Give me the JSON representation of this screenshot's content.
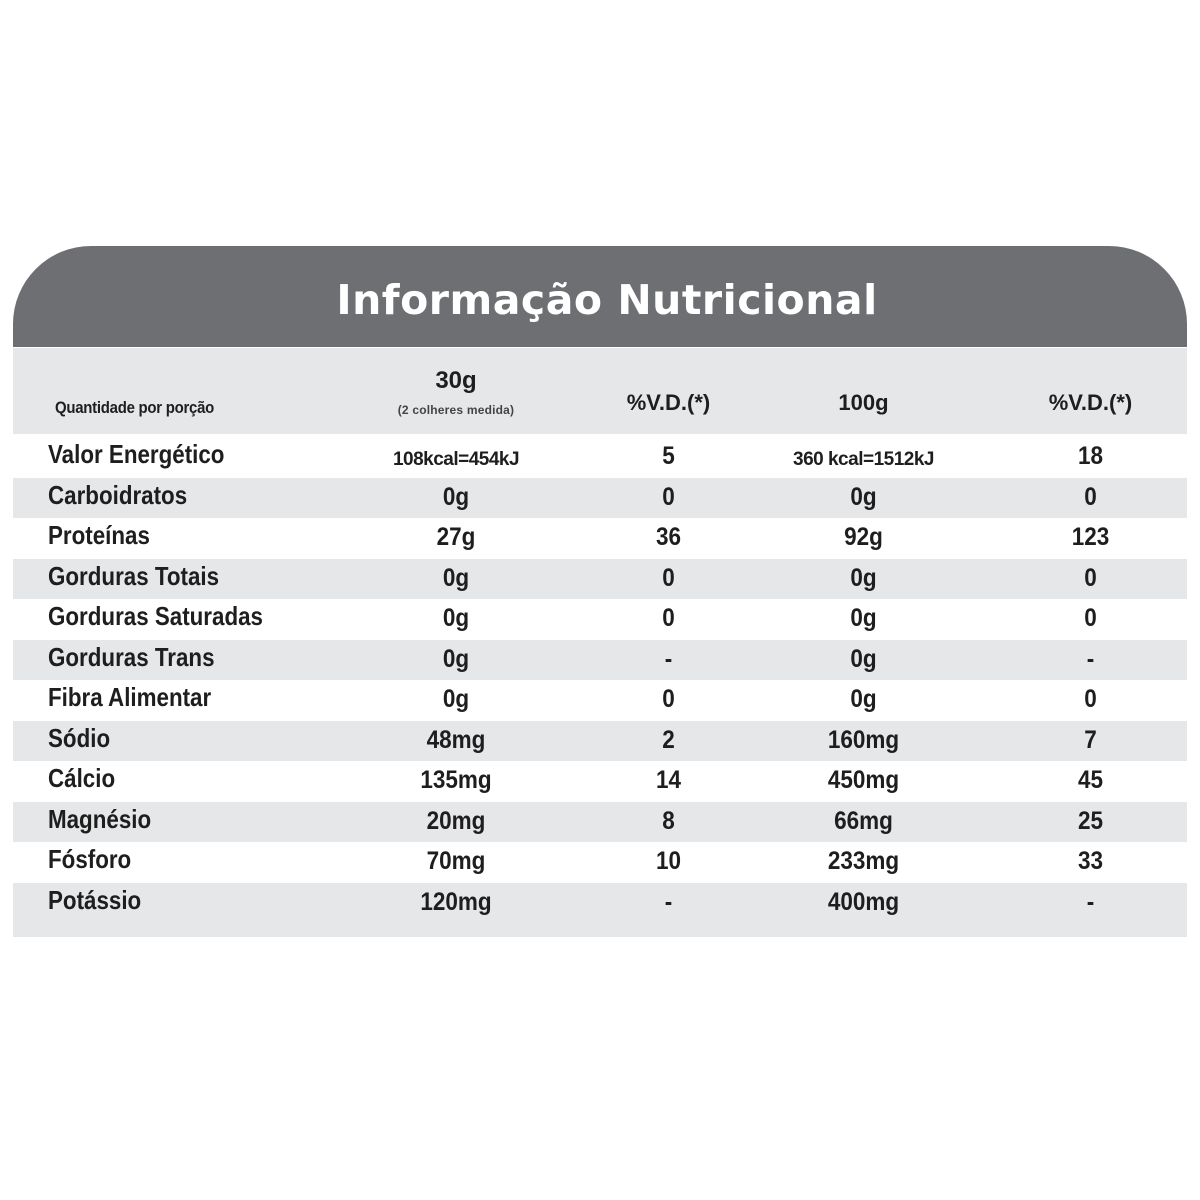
{
  "title": "Informação Nutricional",
  "header": {
    "label": "Quantidade por porção",
    "serving_amount": "30g",
    "serving_note": "(2 colheres medida)",
    "dv_col1": "%V.D.(*)",
    "per_100": "100g",
    "dv_col2": "%V.D.(*)"
  },
  "colors": {
    "title_band": "#6e6f73",
    "shade_row": "#e6e7e9",
    "title_text": "#ffffff",
    "body_text": "#1e1e1e"
  },
  "rows": [
    {
      "name": "Valor Energético",
      "serving": "108kcal=454kJ",
      "dv_serving": "5",
      "per100": "360 kcal=1512kJ",
      "dv_per100": "18"
    },
    {
      "name": "Carboidratos",
      "serving": "0g",
      "dv_serving": "0",
      "per100": "0g",
      "dv_per100": "0"
    },
    {
      "name": "Proteínas",
      "serving": "27g",
      "dv_serving": "36",
      "per100": "92g",
      "dv_per100": "123"
    },
    {
      "name": "Gorduras Totais",
      "serving": "0g",
      "dv_serving": "0",
      "per100": "0g",
      "dv_per100": "0"
    },
    {
      "name": "Gorduras Saturadas",
      "serving": "0g",
      "dv_serving": "0",
      "per100": "0g",
      "dv_per100": "0"
    },
    {
      "name": "Gorduras Trans",
      "serving": "0g",
      "dv_serving": "-",
      "per100": "0g",
      "dv_per100": "-"
    },
    {
      "name": "Fibra Alimentar",
      "serving": "0g",
      "dv_serving": "0",
      "per100": "0g",
      "dv_per100": "0"
    },
    {
      "name": "Sódio",
      "serving": "48mg",
      "dv_serving": "2",
      "per100": "160mg",
      "dv_per100": "7"
    },
    {
      "name": "Cálcio",
      "serving": "135mg",
      "dv_serving": "14",
      "per100": "450mg",
      "dv_per100": "45"
    },
    {
      "name": "Magnésio",
      "serving": "20mg",
      "dv_serving": "8",
      "per100": "66mg",
      "dv_per100": "25"
    },
    {
      "name": "Fósforo",
      "serving": "70mg",
      "dv_serving": "10",
      "per100": "233mg",
      "dv_per100": "33"
    },
    {
      "name": "Potássio",
      "serving": "120mg",
      "dv_serving": "-",
      "per100": "400mg",
      "dv_per100": "-"
    }
  ]
}
